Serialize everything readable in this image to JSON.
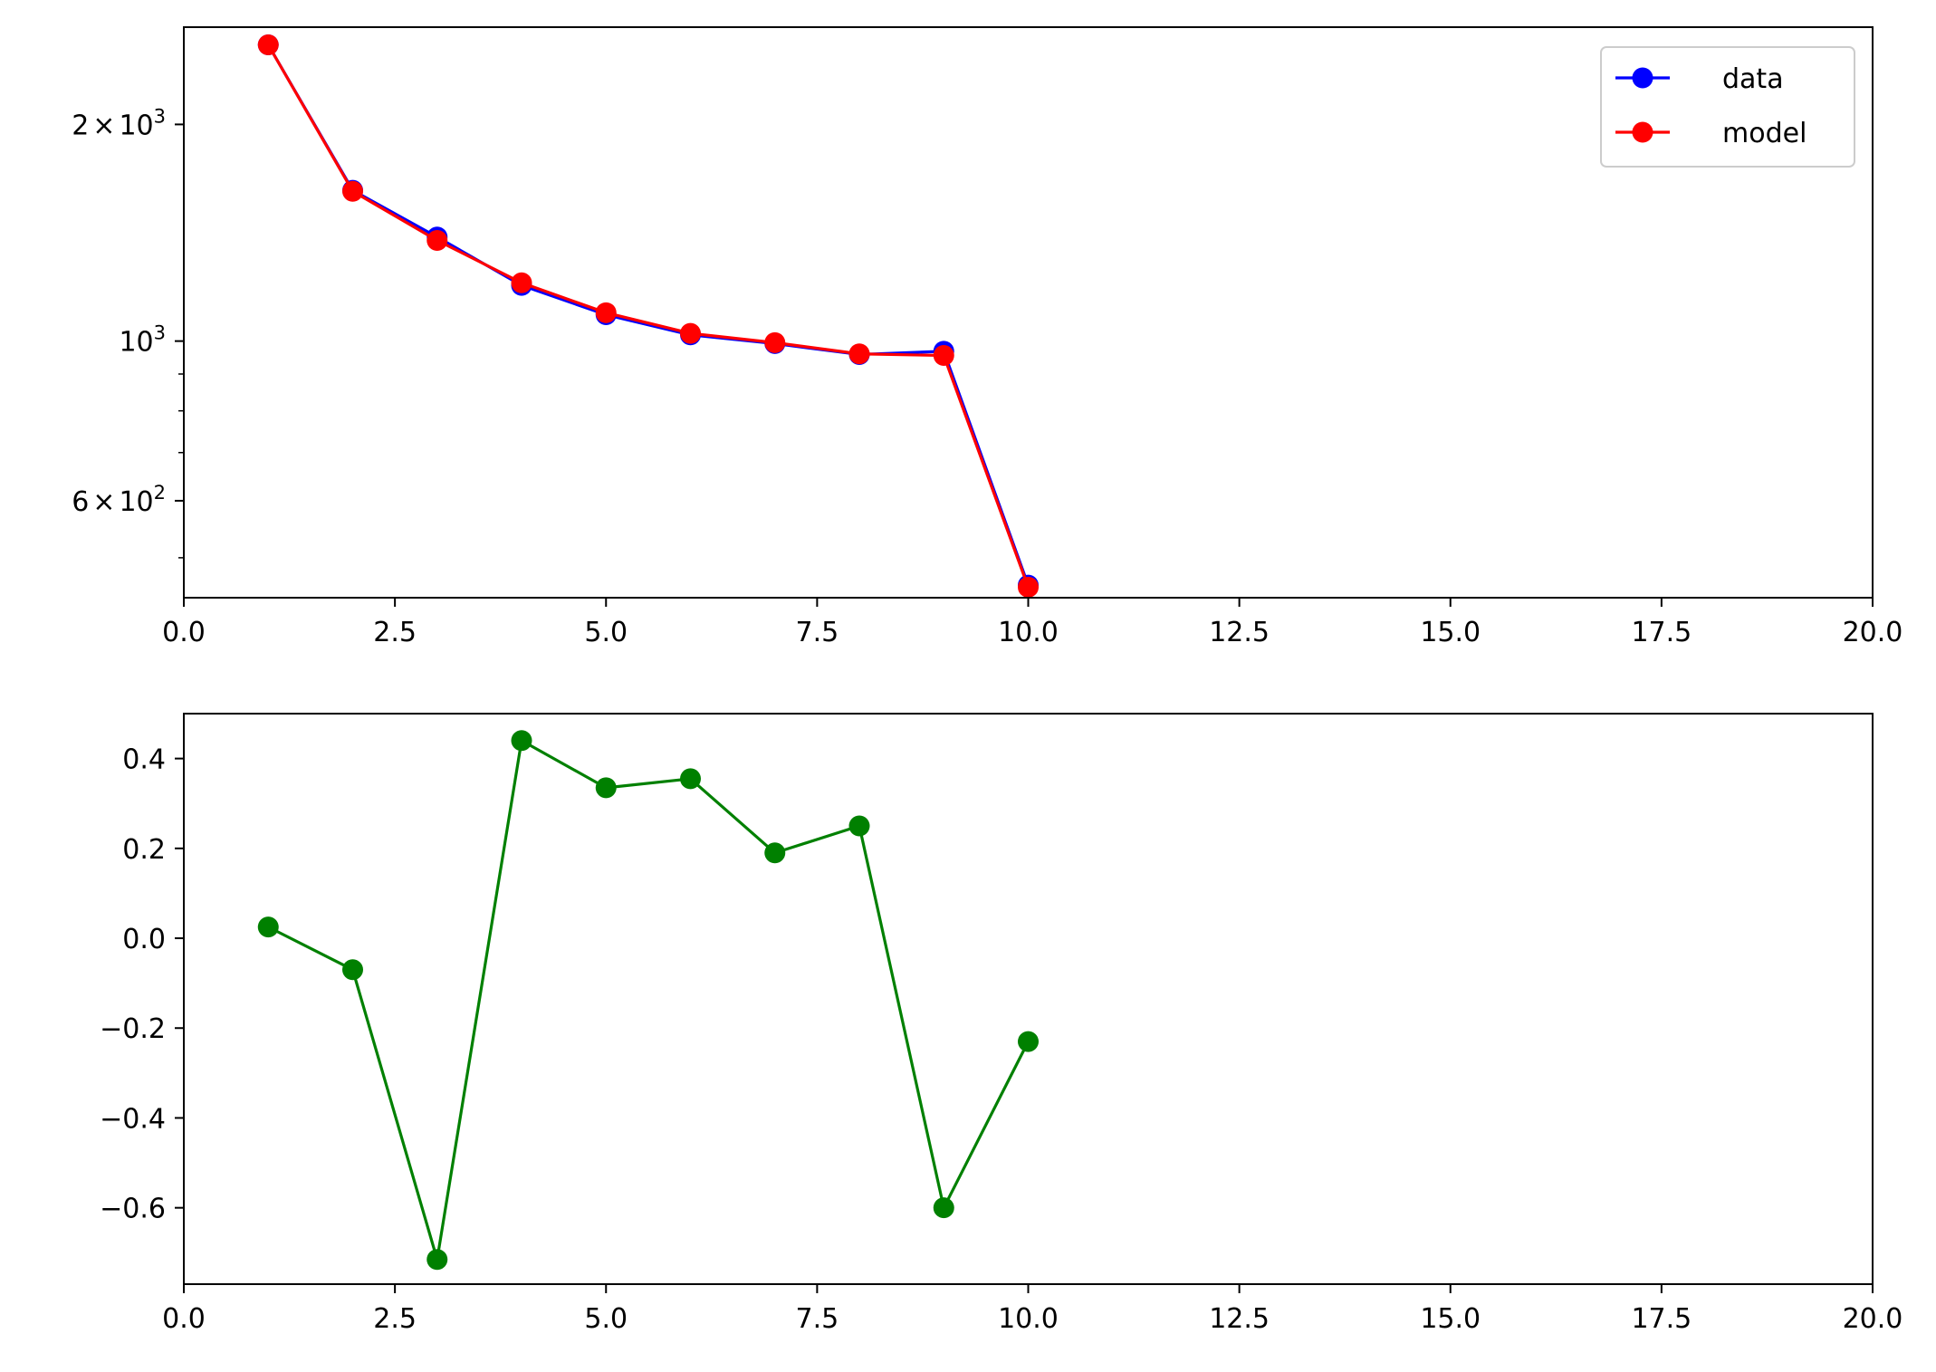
{
  "chart_data": [
    {
      "type": "line",
      "yscale": "log",
      "x": [
        1,
        2,
        3,
        4,
        5,
        6,
        7,
        8,
        9,
        10
      ],
      "series": [
        {
          "name": "data",
          "color": "#0000ff",
          "marker": "circle",
          "values": [
            2580,
            1620,
            1395,
            1195,
            1088,
            1020,
            992,
            958,
            968,
            458
          ]
        },
        {
          "name": "model",
          "color": "#ff0000",
          "marker": "circle",
          "values": [
            2580,
            1615,
            1380,
            1205,
            1095,
            1025,
            995,
            960,
            955,
            455
          ]
        }
      ],
      "xlim": [
        0,
        20
      ],
      "ylim": [
        440,
        2730
      ],
      "xticks": [
        {
          "value": 0,
          "label": "0.0"
        },
        {
          "value": 2.5,
          "label": "2.5"
        },
        {
          "value": 5,
          "label": "5.0"
        },
        {
          "value": 7.5,
          "label": "7.5"
        },
        {
          "value": 10,
          "label": "10.0"
        },
        {
          "value": 12.5,
          "label": "12.5"
        },
        {
          "value": 15,
          "label": "15.0"
        },
        {
          "value": 17.5,
          "label": "17.5"
        },
        {
          "value": 20,
          "label": "20.0"
        }
      ],
      "yticks_major": [
        {
          "value": 600,
          "mantissa": "6",
          "base": "10",
          "exponent": "2"
        },
        {
          "value": 1000,
          "mantissa": "",
          "base": "10",
          "exponent": "3"
        },
        {
          "value": 2000,
          "mantissa": "2",
          "base": "10",
          "exponent": "3"
        }
      ],
      "yticks_minor": [
        500,
        700,
        800,
        900
      ],
      "legend": "upper right",
      "grid": false
    },
    {
      "type": "line",
      "x": [
        1,
        2,
        3,
        4,
        5,
        6,
        7,
        8,
        9,
        10
      ],
      "series": [
        {
          "color": "#008000",
          "marker": "circle",
          "values": [
            0.025,
            -0.07,
            -0.715,
            0.44,
            0.335,
            0.355,
            0.19,
            0.25,
            -0.6,
            -0.23
          ]
        }
      ],
      "xlim": [
        0,
        20
      ],
      "ylim": [
        -0.77,
        0.5
      ],
      "xticks": [
        {
          "value": 0,
          "label": "0.0"
        },
        {
          "value": 2.5,
          "label": "2.5"
        },
        {
          "value": 5,
          "label": "5.0"
        },
        {
          "value": 7.5,
          "label": "7.5"
        },
        {
          "value": 10,
          "label": "10.0"
        },
        {
          "value": 12.5,
          "label": "12.5"
        },
        {
          "value": 15,
          "label": "15.0"
        },
        {
          "value": 17.5,
          "label": "17.5"
        },
        {
          "value": 20,
          "label": "20.0"
        }
      ],
      "yticks": [
        {
          "value": 0.4,
          "label": "0.4"
        },
        {
          "value": 0.2,
          "label": "0.2"
        },
        {
          "value": 0.0,
          "label": "0.0"
        },
        {
          "value": -0.2,
          "label": "−0.2"
        },
        {
          "value": -0.4,
          "label": "−0.4"
        },
        {
          "value": -0.6,
          "label": "−0.6"
        }
      ],
      "grid": false
    }
  ]
}
